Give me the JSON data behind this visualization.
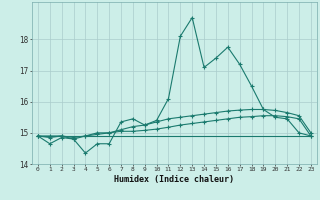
{
  "xlabel": "Humidex (Indice chaleur)",
  "x": [
    0,
    1,
    2,
    3,
    4,
    5,
    6,
    7,
    8,
    9,
    10,
    11,
    12,
    13,
    14,
    15,
    16,
    17,
    18,
    19,
    20,
    21,
    22,
    23
  ],
  "line1": [
    14.9,
    14.65,
    14.85,
    14.8,
    14.35,
    14.65,
    14.65,
    15.35,
    15.45,
    15.25,
    15.4,
    16.1,
    18.1,
    18.7,
    17.1,
    17.4,
    17.75,
    17.2,
    16.5,
    15.75,
    15.5,
    15.45,
    15.0,
    14.9
  ],
  "line2": [
    14.9,
    14.9,
    14.9,
    14.85,
    14.9,
    15.0,
    15.0,
    15.1,
    15.2,
    15.25,
    15.35,
    15.45,
    15.5,
    15.55,
    15.6,
    15.65,
    15.7,
    15.73,
    15.75,
    15.75,
    15.72,
    15.65,
    15.55,
    15.0
  ],
  "line3": [
    14.9,
    14.85,
    14.9,
    14.8,
    14.9,
    14.95,
    15.0,
    15.05,
    15.05,
    15.08,
    15.12,
    15.18,
    15.25,
    15.3,
    15.35,
    15.4,
    15.45,
    15.5,
    15.52,
    15.55,
    15.55,
    15.52,
    15.45,
    14.9
  ],
  "line4": [
    14.9,
    14.9,
    14.9,
    14.9,
    14.9,
    14.9,
    14.9,
    14.9,
    14.9,
    14.9,
    14.9,
    14.9,
    14.9,
    14.9,
    14.9,
    14.9,
    14.9,
    14.9,
    14.9,
    14.9,
    14.9,
    14.9,
    14.9,
    14.9
  ],
  "line_color": "#1a7a6e",
  "bg_color": "#cceee8",
  "grid_color": "#aacccc",
  "ylim": [
    14.0,
    19.2
  ],
  "xlim": [
    -0.5,
    23.5
  ],
  "yticks": [
    14,
    15,
    16,
    17,
    18
  ],
  "xticks": [
    0,
    1,
    2,
    3,
    4,
    5,
    6,
    7,
    8,
    9,
    10,
    11,
    12,
    13,
    14,
    15,
    16,
    17,
    18,
    19,
    20,
    21,
    22,
    23
  ]
}
